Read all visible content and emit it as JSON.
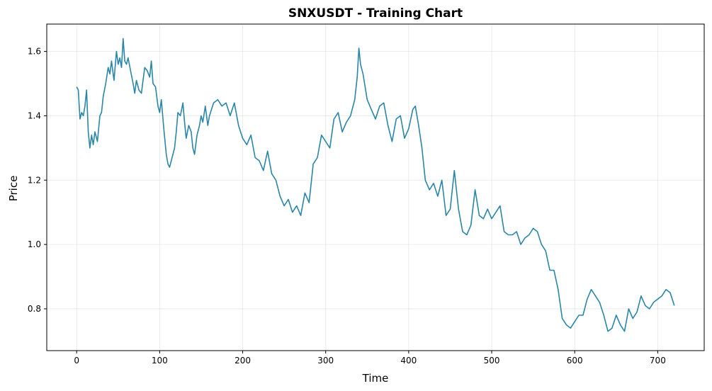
{
  "chart_data": {
    "type": "line",
    "title": "SNXUSDT - Training Chart",
    "xlabel": "Time",
    "ylabel": "Price",
    "xlim": [
      -36,
      756
    ],
    "ylim": [
      0.67,
      1.685
    ],
    "xticks": [
      0,
      100,
      200,
      300,
      400,
      500,
      600,
      700
    ],
    "yticks": [
      0.8,
      1.0,
      1.2,
      1.4,
      1.6
    ],
    "ytick_labels": [
      "0.8",
      "1.0",
      "1.2",
      "1.4",
      "1.6"
    ],
    "grid": true,
    "line_color": "#2a86a8",
    "series": [
      {
        "x": [
          0,
          2,
          4,
          6,
          8,
          10,
          12,
          14,
          16,
          18,
          20,
          22,
          25,
          28,
          30,
          32,
          35,
          38,
          40,
          42,
          45,
          48,
          50,
          52,
          54,
          56,
          58,
          60,
          62,
          65,
          68,
          70,
          72,
          75,
          78,
          80,
          82,
          85,
          88,
          90,
          92,
          95,
          98,
          100,
          102,
          105,
          108,
          110,
          112,
          115,
          118,
          120,
          122,
          125,
          128,
          130,
          132,
          135,
          138,
          140,
          142,
          145,
          148,
          150,
          152,
          155,
          158,
          160,
          165,
          170,
          175,
          180,
          185,
          190,
          195,
          200,
          205,
          210,
          215,
          220,
          225,
          230,
          235,
          240,
          245,
          250,
          255,
          260,
          265,
          270,
          275,
          280,
          285,
          290,
          295,
          300,
          305,
          310,
          315,
          320,
          325,
          330,
          335,
          338,
          340,
          342,
          345,
          350,
          355,
          360,
          365,
          370,
          375,
          380,
          385,
          390,
          395,
          400,
          405,
          408,
          412,
          416,
          420,
          425,
          430,
          435,
          440,
          445,
          450,
          455,
          460,
          465,
          470,
          475,
          480,
          485,
          490,
          495,
          500,
          505,
          510,
          515,
          520,
          525,
          530,
          535,
          540,
          545,
          550,
          555,
          560,
          565,
          570,
          575,
          580,
          585,
          590,
          595,
          600,
          605,
          610,
          615,
          620,
          625,
          630,
          635,
          640,
          645,
          650,
          655,
          660,
          665,
          670,
          675,
          680,
          685,
          690,
          695,
          700,
          705,
          710,
          715,
          720
        ],
        "y": [
          1.49,
          1.48,
          1.39,
          1.41,
          1.4,
          1.43,
          1.48,
          1.35,
          1.3,
          1.34,
          1.31,
          1.35,
          1.32,
          1.4,
          1.41,
          1.46,
          1.5,
          1.55,
          1.53,
          1.57,
          1.51,
          1.6,
          1.56,
          1.58,
          1.55,
          1.64,
          1.57,
          1.56,
          1.58,
          1.54,
          1.5,
          1.47,
          1.51,
          1.48,
          1.47,
          1.51,
          1.55,
          1.54,
          1.52,
          1.57,
          1.5,
          1.49,
          1.43,
          1.41,
          1.45,
          1.36,
          1.28,
          1.25,
          1.24,
          1.27,
          1.3,
          1.35,
          1.41,
          1.4,
          1.44,
          1.38,
          1.33,
          1.37,
          1.35,
          1.3,
          1.28,
          1.34,
          1.37,
          1.4,
          1.38,
          1.43,
          1.37,
          1.4,
          1.44,
          1.45,
          1.43,
          1.44,
          1.4,
          1.44,
          1.37,
          1.33,
          1.31,
          1.34,
          1.27,
          1.26,
          1.23,
          1.29,
          1.22,
          1.2,
          1.15,
          1.12,
          1.14,
          1.1,
          1.12,
          1.09,
          1.16,
          1.13,
          1.25,
          1.27,
          1.34,
          1.32,
          1.3,
          1.39,
          1.41,
          1.35,
          1.38,
          1.4,
          1.45,
          1.52,
          1.61,
          1.56,
          1.53,
          1.45,
          1.42,
          1.39,
          1.43,
          1.44,
          1.37,
          1.32,
          1.39,
          1.4,
          1.33,
          1.36,
          1.42,
          1.43,
          1.37,
          1.3,
          1.2,
          1.17,
          1.19,
          1.15,
          1.2,
          1.09,
          1.11,
          1.23,
          1.11,
          1.04,
          1.03,
          1.06,
          1.17,
          1.09,
          1.08,
          1.11,
          1.08,
          1.1,
          1.12,
          1.04,
          1.03,
          1.03,
          1.04,
          1.0,
          1.02,
          1.03,
          1.05,
          1.04,
          1.0,
          0.98,
          0.92,
          0.92,
          0.86,
          0.77,
          0.75,
          0.74,
          0.76,
          0.78,
          0.78,
          0.83,
          0.86,
          0.84,
          0.82,
          0.78,
          0.73,
          0.74,
          0.78,
          0.75,
          0.73,
          0.8,
          0.77,
          0.79,
          0.84,
          0.81,
          0.8,
          0.82,
          0.83,
          0.84,
          0.86,
          0.85,
          0.81
        ]
      }
    ]
  }
}
